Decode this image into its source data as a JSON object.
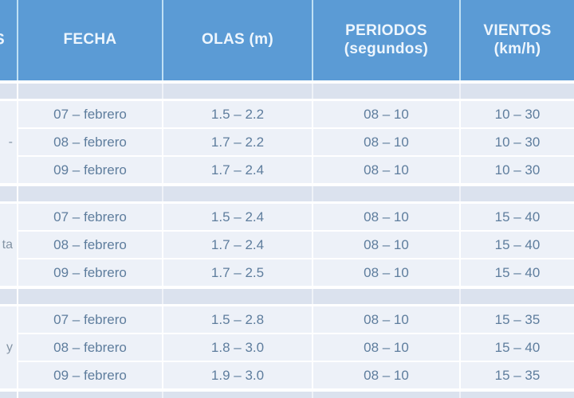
{
  "chart_data": {
    "type": "table",
    "title": "Marine forecast table (olas, periodos, vientos) 07-09 febrero",
    "columns": [
      "FECHA",
      "OLAS (m)",
      "PERIODOS (segundos)",
      "VIENTOS (km/h)"
    ],
    "left_column_fragments": {
      "header": "S",
      "groups": [
        "-",
        "ta",
        "y"
      ]
    },
    "groups": [
      {
        "rows": [
          [
            "07 – febrero",
            "1.5 – 2.2",
            "08 – 10",
            "10 – 30"
          ],
          [
            "08 – febrero",
            "1.7 – 2.2",
            "08 – 10",
            "10 – 30"
          ],
          [
            "09 – febrero",
            "1.7 – 2.4",
            "08 – 10",
            "10 – 30"
          ]
        ]
      },
      {
        "rows": [
          [
            "07 – febrero",
            "1.5 – 2.4",
            "08 – 10",
            "15 – 40"
          ],
          [
            "08 – febrero",
            "1.7 – 2.4",
            "08 – 10",
            "15 – 40"
          ],
          [
            "09 – febrero",
            "1.7 – 2.5",
            "08 – 10",
            "15 – 40"
          ]
        ]
      },
      {
        "rows": [
          [
            "07 – febrero",
            "1.5 – 2.8",
            "08 – 10",
            "15 – 35"
          ],
          [
            "08 – febrero",
            "1.8 – 3.0",
            "08 – 10",
            "15 – 40"
          ],
          [
            "09 – febrero",
            "1.9 – 3.0",
            "08 – 10",
            "15 – 35"
          ]
        ]
      }
    ]
  },
  "header": {
    "fecha": "FECHA",
    "olas": "OLAS (m)",
    "periodos_line1": "PERIODOS",
    "periodos_line2": "(segundos)",
    "vientos_line1": "VIENTOS",
    "vientos_line2": "(km/h)"
  },
  "colors": {
    "header_bg": "#5b9bd5",
    "header_text": "#eef6fd",
    "band_bg": "#dbe2ee",
    "row_bg": "#edf1f8",
    "cell_text": "#5e7d9d"
  }
}
